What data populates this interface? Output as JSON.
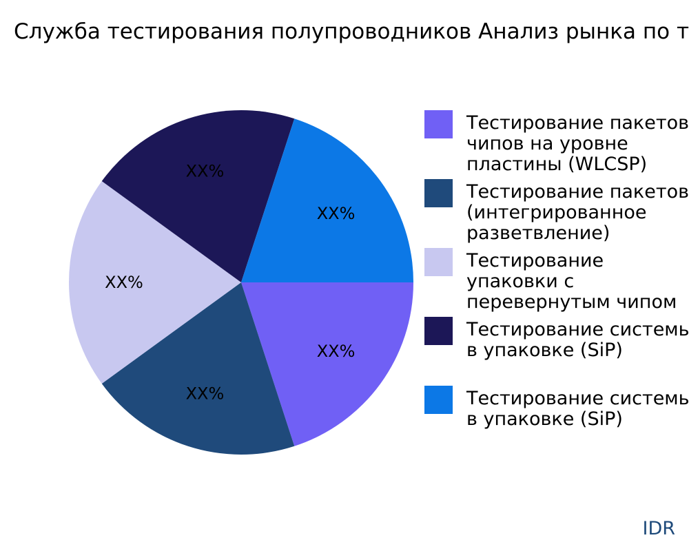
{
  "chart_data": {
    "type": "pie",
    "title": "Служба тестирования полупроводников Анализ рынка по типам",
    "categories": [
      "Тестирование пакетов чипов на уровне пластины (WLCSP)",
      "Тестирование пакетов (интегрированное разветвление)",
      "Тестирование упаковки с перевернутым чипом",
      "Тестирование системы в упаковке (SiP)",
      "Тестирование системы в упаковке (SiP)"
    ],
    "values": [
      20,
      20,
      20,
      20,
      20
    ],
    "data_labels": [
      "XX%",
      "XX%",
      "XX%",
      "XX%",
      "XX%"
    ],
    "colors": [
      "#7060f5",
      "#1f4a7b",
      "#c8c8f0",
      "#1c1757",
      "#0c78e6"
    ],
    "legend_placement": "right"
  },
  "watermark": "IDR"
}
